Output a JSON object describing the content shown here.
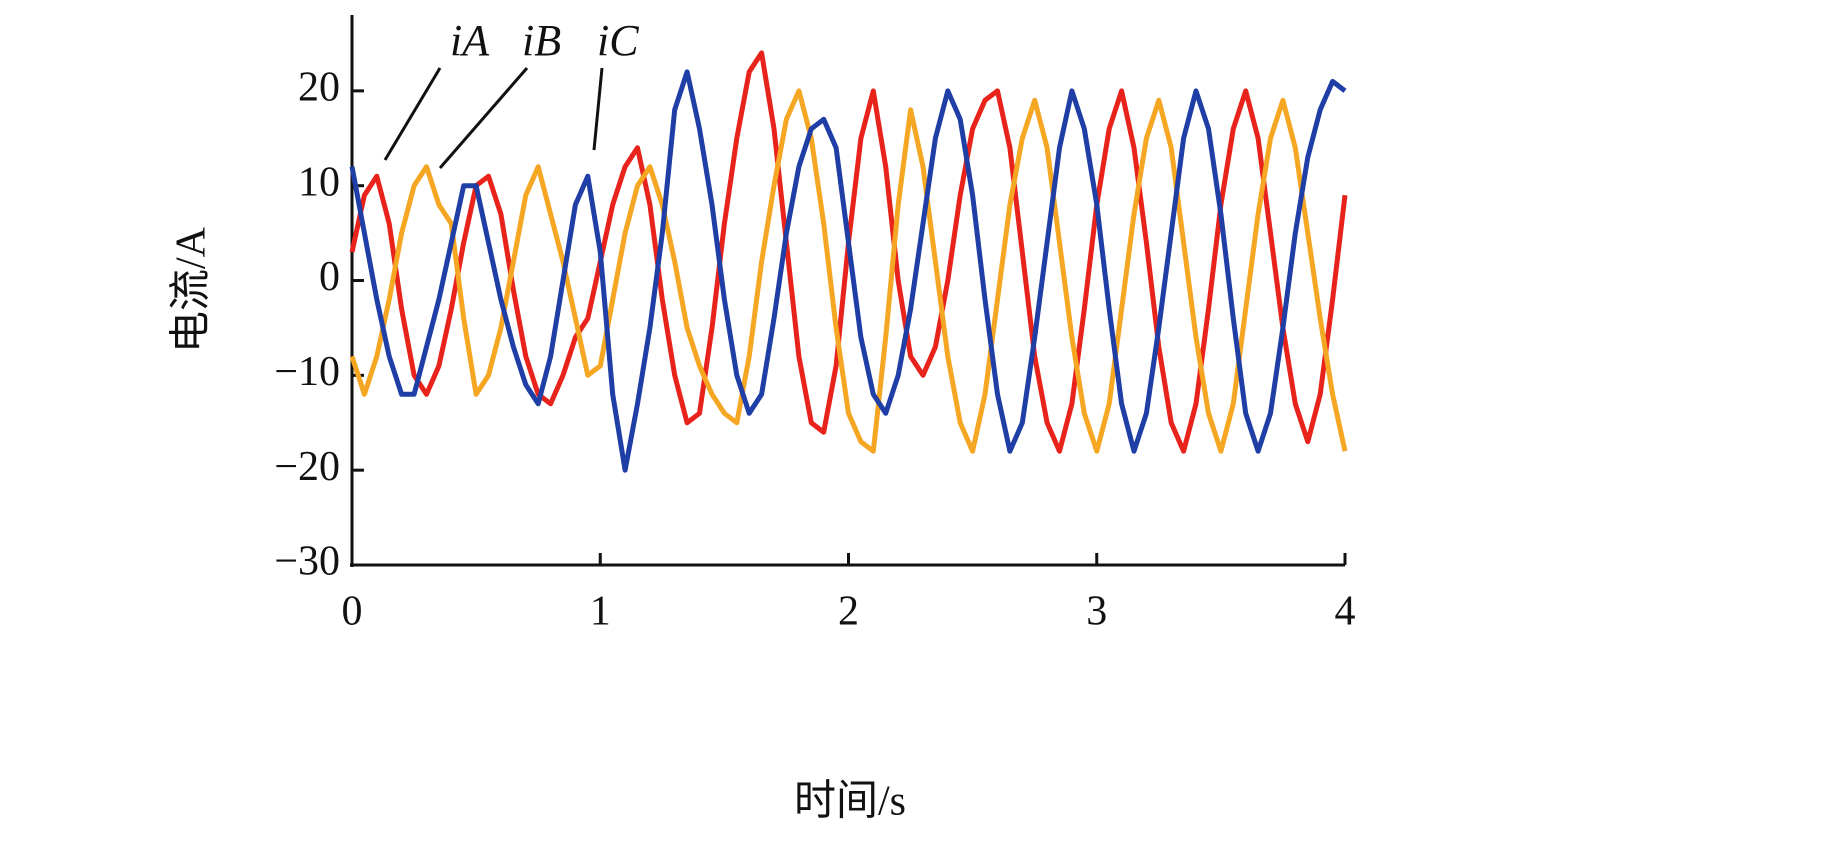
{
  "chart_data": {
    "type": "line",
    "x_label": "时间/s",
    "y_label": "电流/A",
    "x": [
      0,
      0.05,
      0.1,
      0.15,
      0.2,
      0.25,
      0.3,
      0.35,
      0.4,
      0.45,
      0.5,
      0.55,
      0.6,
      0.65,
      0.7,
      0.75,
      0.8,
      0.85,
      0.9,
      0.95,
      1,
      1.05,
      1.1,
      1.15,
      1.2,
      1.25,
      1.3,
      1.35,
      1.4,
      1.45,
      1.5,
      1.55,
      1.6,
      1.65,
      1.7,
      1.75,
      1.8,
      1.85,
      1.9,
      1.95,
      2,
      2.05,
      2.1,
      2.15,
      2.2,
      2.25,
      2.3,
      2.35,
      2.4,
      2.45,
      2.5,
      2.55,
      2.6,
      2.65,
      2.7,
      2.75,
      2.8,
      2.85,
      2.9,
      2.95,
      3,
      3.05,
      3.1,
      3.15,
      3.2,
      3.25,
      3.3,
      3.35,
      3.4,
      3.45,
      3.5,
      3.55,
      3.6,
      3.65,
      3.7,
      3.75,
      3.8,
      3.85,
      3.9,
      3.95,
      4
    ],
    "series": [
      {
        "name": "iA",
        "color": "#e8231c",
        "values": [
          3,
          9,
          11,
          6,
          -3,
          -10,
          -12,
          -9,
          -3,
          4,
          10,
          11,
          7,
          -1,
          -8,
          -12,
          -13,
          -10,
          -6,
          -4,
          2,
          8,
          12,
          14,
          8,
          -2,
          -10,
          -15,
          -14,
          -5,
          6,
          15,
          22,
          24,
          16,
          4,
          -8,
          -15,
          -16,
          -9,
          4,
          15,
          20,
          12,
          0,
          -8,
          -10,
          -7,
          0,
          9,
          16,
          19,
          20,
          14,
          3,
          -8,
          -15,
          -18,
          -13,
          -3,
          8,
          16,
          20,
          14,
          4,
          -7,
          -15,
          -18,
          -13,
          -3,
          8,
          16,
          20,
          15,
          5,
          -5,
          -13,
          -17,
          -12,
          -2,
          9
        ]
      },
      {
        "name": "iB",
        "color": "#f5a623",
        "values": [
          -8,
          -12,
          -8,
          -2,
          5,
          10,
          12,
          8,
          6,
          -4,
          -12,
          -10,
          -5,
          2,
          9,
          12,
          7,
          2,
          -4,
          -10,
          -9,
          -2,
          5,
          10,
          12,
          8,
          2,
          -5,
          -9,
          -12,
          -14,
          -15,
          -8,
          2,
          10,
          17,
          20,
          15,
          6,
          -5,
          -14,
          -17,
          -18,
          -6,
          8,
          18,
          12,
          2,
          -8,
          -15,
          -18,
          -12,
          -2,
          8,
          15,
          19,
          14,
          4,
          -6,
          -14,
          -18,
          -13,
          -3,
          7,
          15,
          19,
          14,
          4,
          -6,
          -14,
          -18,
          -13,
          -3,
          7,
          15,
          19,
          14,
          5,
          -4,
          -12,
          -18
        ]
      },
      {
        "name": "iC",
        "color": "#1f3ea6",
        "values": [
          12,
          5,
          -2,
          -8,
          -12,
          -12,
          -7,
          -2,
          4,
          10,
          10,
          4,
          -2,
          -7,
          -11,
          -13,
          -8,
          0,
          8,
          11,
          3,
          -12,
          -20,
          -13,
          -5,
          5,
          18,
          22,
          16,
          8,
          -2,
          -10,
          -14,
          -12,
          -4,
          5,
          12,
          16,
          17,
          14,
          4,
          -6,
          -12,
          -14,
          -10,
          -3,
          6,
          15,
          20,
          17,
          9,
          -2,
          -12,
          -18,
          -15,
          -6,
          4,
          14,
          20,
          16,
          8,
          -3,
          -13,
          -18,
          -14,
          -5,
          5,
          15,
          20,
          16,
          7,
          -4,
          -14,
          -18,
          -14,
          -5,
          5,
          13,
          18,
          21,
          20
        ]
      }
    ],
    "xlim": [
      0,
      4
    ],
    "xticks": [
      0,
      1,
      2,
      3,
      4
    ],
    "ylim": [
      -30,
      28
    ],
    "yticks": [
      {
        "value": -30,
        "label": "−30"
      },
      {
        "value": -20,
        "label": "−20"
      },
      {
        "value": -10,
        "label": "−10"
      },
      0,
      10,
      20
    ]
  }
}
